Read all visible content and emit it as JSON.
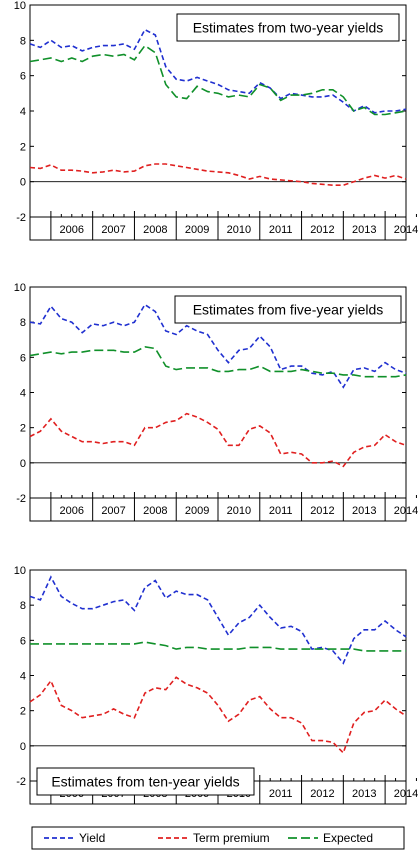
{
  "chart_data": [
    {
      "type": "line",
      "title": "Estimates from two-year yields",
      "title_position": "top-right",
      "x_ticks": [
        "2006",
        "2007",
        "2008",
        "2009",
        "2010",
        "2011",
        "2012",
        "2013",
        "2014"
      ],
      "y_ticks": [
        "10",
        "8",
        "6",
        "4",
        "2",
        "0",
        "-2"
      ],
      "ylim": [
        -2,
        10
      ],
      "xlim": [
        2005.5,
        2014.5
      ],
      "x": [
        2005.5,
        2005.75,
        2006,
        2006.25,
        2006.5,
        2006.75,
        2007,
        2007.25,
        2007.5,
        2007.75,
        2008,
        2008.25,
        2008.5,
        2008.75,
        2009,
        2009.25,
        2009.5,
        2009.75,
        2010,
        2010.25,
        2010.5,
        2010.75,
        2011,
        2011.25,
        2011.5,
        2011.75,
        2012,
        2012.25,
        2012.5,
        2012.75,
        2013,
        2013.25,
        2013.5,
        2013.75,
        2014,
        2014.25,
        2014.5
      ],
      "series": [
        {
          "name": "Yield",
          "color": "#2030d0",
          "values": [
            7.8,
            7.6,
            8.0,
            7.6,
            7.7,
            7.4,
            7.6,
            7.7,
            7.7,
            7.8,
            7.5,
            8.6,
            8.3,
            6.5,
            5.8,
            5.7,
            5.9,
            5.7,
            5.5,
            5.2,
            5.1,
            5.0,
            5.6,
            5.3,
            4.7,
            5.0,
            4.9,
            4.8,
            4.8,
            4.9,
            4.5,
            4.0,
            4.3,
            3.9,
            4.0,
            4.0,
            4.1
          ]
        },
        {
          "name": "Term premium",
          "color": "#e02020",
          "values": [
            0.8,
            0.75,
            0.95,
            0.65,
            0.65,
            0.6,
            0.5,
            0.55,
            0.65,
            0.55,
            0.6,
            0.9,
            1.0,
            1.0,
            0.9,
            0.8,
            0.7,
            0.6,
            0.55,
            0.5,
            0.35,
            0.15,
            0.3,
            0.15,
            0.1,
            0.05,
            0.0,
            -0.1,
            -0.15,
            -0.2,
            -0.2,
            0.0,
            0.2,
            0.35,
            0.2,
            0.35,
            0.15
          ]
        },
        {
          "name": "Expected",
          "color": "#10902a",
          "values": [
            6.8,
            6.9,
            7.0,
            6.8,
            7.0,
            6.8,
            7.1,
            7.2,
            7.1,
            7.2,
            6.9,
            7.7,
            7.3,
            5.5,
            4.8,
            4.7,
            5.4,
            5.1,
            5.0,
            4.8,
            4.9,
            4.8,
            5.5,
            5.3,
            4.6,
            4.9,
            4.9,
            5.0,
            5.2,
            5.2,
            4.8,
            4.0,
            4.2,
            3.8,
            3.8,
            3.9,
            4.0
          ]
        }
      ]
    },
    {
      "type": "line",
      "title": "Estimates from five-year yields",
      "title_position": "top-right",
      "x_ticks": [
        "2006",
        "2007",
        "2008",
        "2009",
        "2010",
        "2011",
        "2012",
        "2013",
        "2014"
      ],
      "y_ticks": [
        "10",
        "8",
        "6",
        "4",
        "2",
        "0",
        "-2"
      ],
      "ylim": [
        -2,
        10
      ],
      "xlim": [
        2005.5,
        2014.5
      ],
      "x": [
        2005.5,
        2005.75,
        2006,
        2006.25,
        2006.5,
        2006.75,
        2007,
        2007.25,
        2007.5,
        2007.75,
        2008,
        2008.25,
        2008.5,
        2008.75,
        2009,
        2009.25,
        2009.5,
        2009.75,
        2010,
        2010.25,
        2010.5,
        2010.75,
        2011,
        2011.25,
        2011.5,
        2011.75,
        2012,
        2012.25,
        2012.5,
        2012.75,
        2013,
        2013.25,
        2013.5,
        2013.75,
        2014,
        2014.25,
        2014.5
      ],
      "series": [
        {
          "name": "Yield",
          "color": "#2030d0",
          "values": [
            8.0,
            7.9,
            8.9,
            8.2,
            8.0,
            7.4,
            7.9,
            7.8,
            8.0,
            7.8,
            8.0,
            9.0,
            8.6,
            7.5,
            7.3,
            7.8,
            7.5,
            7.3,
            6.4,
            5.7,
            6.4,
            6.5,
            7.2,
            6.6,
            5.3,
            5.5,
            5.5,
            5.1,
            5.0,
            5.2,
            4.3,
            5.3,
            5.4,
            5.2,
            5.7,
            5.3,
            5.1
          ]
        },
        {
          "name": "Term premium",
          "color": "#e02020",
          "values": [
            1.5,
            1.8,
            2.5,
            1.8,
            1.5,
            1.2,
            1.2,
            1.1,
            1.2,
            1.2,
            1.0,
            2.0,
            2.0,
            2.3,
            2.4,
            2.8,
            2.6,
            2.3,
            1.9,
            1.0,
            1.0,
            1.9,
            2.1,
            1.7,
            0.5,
            0.6,
            0.5,
            0.0,
            0.0,
            0.1,
            -0.2,
            0.6,
            0.9,
            1.0,
            1.6,
            1.2,
            1.0
          ]
        },
        {
          "name": "Expected",
          "color": "#10902a",
          "values": [
            6.1,
            6.2,
            6.3,
            6.2,
            6.3,
            6.3,
            6.4,
            6.4,
            6.4,
            6.3,
            6.3,
            6.6,
            6.5,
            5.5,
            5.3,
            5.4,
            5.4,
            5.4,
            5.2,
            5.2,
            5.3,
            5.3,
            5.5,
            5.2,
            5.2,
            5.2,
            5.3,
            5.2,
            5.1,
            5.1,
            5.0,
            5.0,
            4.9,
            4.9,
            4.9,
            4.9,
            5.0
          ]
        }
      ]
    },
    {
      "type": "line",
      "title": "Estimates from ten-year yields",
      "title_position": "bottom-left",
      "x_ticks": [
        "2006",
        "2007",
        "2008",
        "2009",
        "2010",
        "2011",
        "2012",
        "2013",
        "2014"
      ],
      "y_ticks": [
        "10",
        "8",
        "6",
        "4",
        "2",
        "0",
        "-2"
      ],
      "ylim": [
        -2,
        10
      ],
      "xlim": [
        2005.5,
        2014.5
      ],
      "x": [
        2005.5,
        2005.75,
        2006,
        2006.25,
        2006.5,
        2006.75,
        2007,
        2007.25,
        2007.5,
        2007.75,
        2008,
        2008.25,
        2008.5,
        2008.75,
        2009,
        2009.25,
        2009.5,
        2009.75,
        2010,
        2010.25,
        2010.5,
        2010.75,
        2011,
        2011.25,
        2011.5,
        2011.75,
        2012,
        2012.25,
        2012.5,
        2012.75,
        2013,
        2013.25,
        2013.5,
        2013.75,
        2014,
        2014.25,
        2014.5
      ],
      "series": [
        {
          "name": "Yield",
          "color": "#2030d0",
          "values": [
            8.5,
            8.3,
            9.6,
            8.5,
            8.1,
            7.8,
            7.8,
            8.0,
            8.2,
            8.3,
            7.7,
            9.0,
            9.4,
            8.4,
            8.8,
            8.6,
            8.6,
            8.3,
            7.3,
            6.3,
            7.0,
            7.3,
            8.0,
            7.3,
            6.7,
            6.8,
            6.5,
            5.5,
            5.6,
            5.4,
            4.7,
            6.1,
            6.6,
            6.6,
            7.1,
            6.6,
            6.2
          ]
        },
        {
          "name": "Term premium",
          "color": "#e02020",
          "values": [
            2.5,
            2.9,
            3.7,
            2.3,
            2.0,
            1.6,
            1.7,
            1.8,
            2.1,
            1.8,
            1.6,
            3.0,
            3.3,
            3.2,
            3.9,
            3.5,
            3.3,
            3.0,
            2.3,
            1.4,
            1.8,
            2.6,
            2.8,
            2.1,
            1.6,
            1.6,
            1.3,
            0.3,
            0.3,
            0.2,
            -0.4,
            1.3,
            1.9,
            2.0,
            2.6,
            2.1,
            1.7
          ]
        },
        {
          "name": "Expected",
          "color": "#10902a",
          "values": [
            5.8,
            5.8,
            5.8,
            5.8,
            5.8,
            5.8,
            5.8,
            5.8,
            5.8,
            5.8,
            5.8,
            5.9,
            5.8,
            5.7,
            5.5,
            5.6,
            5.6,
            5.5,
            5.5,
            5.5,
            5.5,
            5.6,
            5.6,
            5.6,
            5.5,
            5.5,
            5.5,
            5.5,
            5.5,
            5.5,
            5.5,
            5.5,
            5.4,
            5.4,
            5.4,
            5.4,
            5.4
          ]
        }
      ]
    }
  ],
  "legend": {
    "position": "bottom",
    "entries": [
      {
        "label": "Yield",
        "color": "#2030d0"
      },
      {
        "label": "Term premium",
        "color": "#e02020"
      },
      {
        "label": "Expected",
        "color": "#10902a"
      }
    ]
  }
}
